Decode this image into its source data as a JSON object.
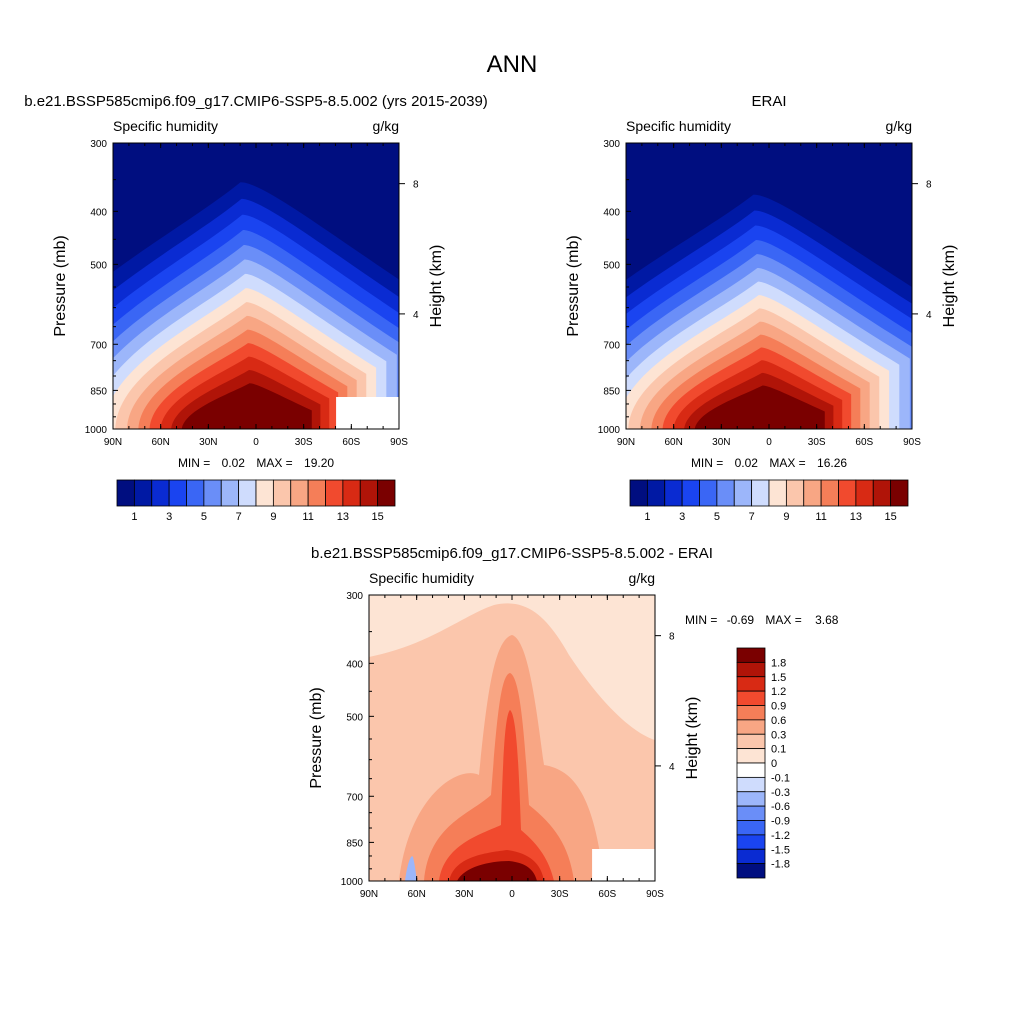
{
  "page_title": "ANN",
  "panels": {
    "model": {
      "title": "b.e21.BSSP585cmip6.f09_g17.CMIP6-SSP5-8.5.002 (yrs 2015-2039)",
      "left_label": "Specific humidity",
      "right_label": "g/kg",
      "stats_min_label": "MIN =",
      "stats_min": "0.02",
      "stats_max_label": "MAX =",
      "stats_max": "19.20"
    },
    "obs": {
      "title": "ERAI",
      "left_label": "Specific humidity",
      "right_label": "g/kg",
      "stats_min_label": "MIN =",
      "stats_min": "0.02",
      "stats_max_label": "MAX =",
      "stats_max": "16.26"
    },
    "diff": {
      "title": "b.e21.BSSP585cmip6.f09_g17.CMIP6-SSP5-8.5.002 - ERAI",
      "left_label": "Specific humidity",
      "right_label": "g/kg",
      "stats_min_label": "MIN =",
      "stats_min": "-0.69",
      "stats_max_label": "MAX =",
      "stats_max": "3.68"
    }
  },
  "axes": {
    "ylabel": "Pressure (mb)",
    "y2label": "Height (km)",
    "yticks": [
      "300",
      "400",
      "500",
      "700",
      "850",
      "1000"
    ],
    "y2ticks": [
      "8",
      "4"
    ],
    "xticks": [
      "90N",
      "60N",
      "30N",
      "0",
      "30S",
      "60S",
      "90S"
    ]
  },
  "colors": {
    "field_levels": [
      1,
      2,
      3,
      4,
      5,
      6,
      7,
      8,
      9,
      10,
      11,
      12,
      13,
      14,
      15
    ],
    "field_colors": [
      "#000e80",
      "#0019a4",
      "#0a2bd2",
      "#1a44f0",
      "#3a66f5",
      "#6a8ef8",
      "#9cb6fa",
      "#cfdcfd",
      "#fde4d4",
      "#fbc6ac",
      "#f8a684",
      "#f57e58",
      "#f14a2e",
      "#d82a14",
      "#b01408",
      "#7a0000"
    ],
    "diff_colors": [
      "#000e80",
      "#0a2bd2",
      "#1a44f0",
      "#3a66f5",
      "#6a8ef8",
      "#9cb6fa",
      "#cfdcfd",
      "#ffffff",
      "#fde4d4",
      "#fbc6ac",
      "#f8a684",
      "#f57e58",
      "#f14a2e",
      "#d82a14",
      "#b01408",
      "#7a0000"
    ]
  },
  "colorbars": {
    "field_labels": [
      "1",
      "3",
      "5",
      "7",
      "9",
      "11",
      "13",
      "15"
    ],
    "diff_labels": [
      "1.8",
      "1.5",
      "1.2",
      "0.9",
      "0.6",
      "0.3",
      "0.1",
      "0",
      "-0.1",
      "-0.3",
      "-0.6",
      "-0.9",
      "-1.2",
      "-1.5",
      "-1.8"
    ]
  },
  "chart_data": [
    {
      "type": "heatmap",
      "title": "b.e21.BSSP585cmip6.f09_g17.CMIP6-SSP5-8.5.002 (yrs 2015-2039)",
      "variable": "Specific humidity",
      "units": "g/kg",
      "xlabel": "",
      "ylabel": "Pressure (mb)",
      "y2label": "Height (km)",
      "x_range": [
        "90N",
        "90S"
      ],
      "y_range_mb": [
        1000,
        300
      ],
      "y_scale": "log",
      "contour_levels": [
        1,
        2,
        3,
        4,
        5,
        6,
        7,
        8,
        9,
        10,
        11,
        12,
        13,
        14,
        15
      ],
      "min": 0.02,
      "max": 19.2
    },
    {
      "type": "heatmap",
      "title": "ERAI",
      "variable": "Specific humidity",
      "units": "g/kg",
      "xlabel": "",
      "ylabel": "Pressure (mb)",
      "y2label": "Height (km)",
      "x_range": [
        "90N",
        "90S"
      ],
      "y_range_mb": [
        1000,
        300
      ],
      "y_scale": "log",
      "contour_levels": [
        1,
        2,
        3,
        4,
        5,
        6,
        7,
        8,
        9,
        10,
        11,
        12,
        13,
        14,
        15
      ],
      "min": 0.02,
      "max": 16.26
    },
    {
      "type": "heatmap",
      "title": "b.e21.BSSP585cmip6.f09_g17.CMIP6-SSP5-8.5.002 - ERAI",
      "variable": "Specific humidity",
      "units": "g/kg",
      "xlabel": "",
      "ylabel": "Pressure (mb)",
      "y2label": "Height (km)",
      "x_range": [
        "90N",
        "90S"
      ],
      "y_range_mb": [
        1000,
        300
      ],
      "y_scale": "log",
      "contour_levels": [
        -1.8,
        -1.5,
        -1.2,
        -0.9,
        -0.6,
        -0.3,
        -0.1,
        0,
        0.1,
        0.3,
        0.6,
        0.9,
        1.2,
        1.5,
        1.8
      ],
      "min": -0.69,
      "max": 3.68
    }
  ]
}
